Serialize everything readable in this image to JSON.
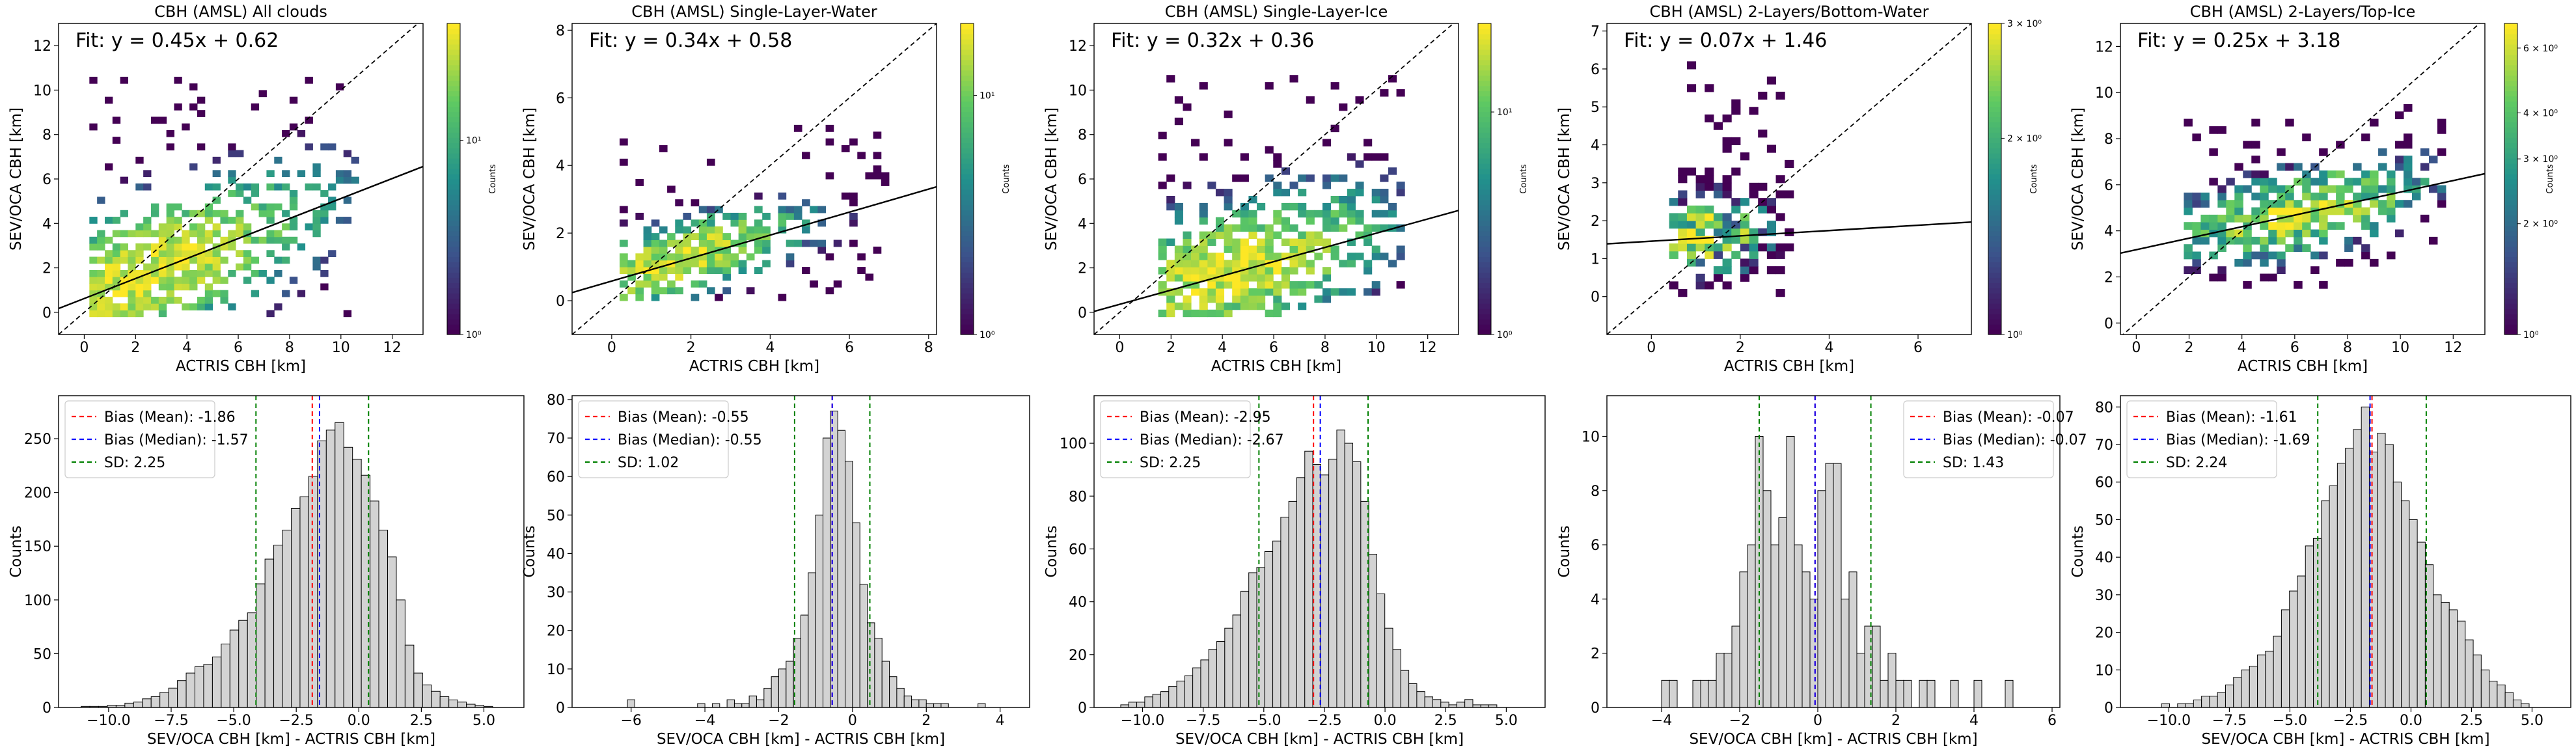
{
  "figure": {
    "colorbar_label": "Counts",
    "xlabel_top": "ACTRIS CBH [km]",
    "ylabel_top": "SEV/OCA CBH [km]",
    "xlabel_bottom": "SEV/OCA CBH [km] - ACTRIS CBH [km]",
    "ylabel_bottom": "Counts",
    "colormap": [
      "#440154",
      "#3b528b",
      "#21918c",
      "#5ec962",
      "#fde725"
    ],
    "fit_line_color": "#000000",
    "identity_line_color": "#000000",
    "hist_bar_fill": "#d3d3d3",
    "hist_bar_edge": "#000000",
    "mean_color": "#ff0000",
    "median_color": "#0000ff",
    "sd_color": "#008000"
  },
  "chart_data": [
    {
      "type": "heatmap",
      "panel": "top-1",
      "title": "CBH (AMSL) All clouds",
      "xlabel": "ACTRIS CBH [km]",
      "ylabel": "SEV/OCA CBH [km]",
      "xlim": [
        -1,
        13.2
      ],
      "ylim": [
        -1,
        13
      ],
      "xticks": [
        0,
        2,
        4,
        6,
        8,
        10,
        12
      ],
      "yticks": [
        0,
        2,
        4,
        6,
        8,
        10,
        12
      ],
      "fit_text": "Fit: y = 0.45x + 0.62",
      "fit": {
        "slope": 0.45,
        "intercept": 0.62
      },
      "colorbar": {
        "label": "Counts",
        "scale": "log",
        "ticks": [
          {
            "value": 1,
            "label": "10⁰"
          },
          {
            "value": 10,
            "label": "10¹"
          }
        ],
        "max": 40
      },
      "density": {
        "x_range": [
          0.2,
          10.8
        ],
        "y_range": [
          -0.2,
          10.8
        ],
        "center": [
          2.2,
          0.8
        ],
        "spread": [
          2.5,
          1.8
        ],
        "bin": 0.3,
        "slope": 0.45,
        "intercept": 0.62
      }
    },
    {
      "type": "heatmap",
      "panel": "top-2",
      "title": "CBH (AMSL) Single-Layer-Water",
      "xlabel": "ACTRIS CBH [km]",
      "ylabel": "SEV/OCA CBH [km]",
      "xlim": [
        -1,
        8.2
      ],
      "ylim": [
        -1,
        8.2
      ],
      "xticks": [
        0,
        2,
        4,
        6,
        8
      ],
      "yticks": [
        0,
        2,
        4,
        6,
        8
      ],
      "fit_text": "Fit: y = 0.34x + 0.58",
      "fit": {
        "slope": 0.34,
        "intercept": 0.58
      },
      "colorbar": {
        "label": "Counts",
        "scale": "log",
        "ticks": [
          {
            "value": 1,
            "label": "10⁰"
          },
          {
            "value": 10,
            "label": "10¹"
          }
        ],
        "max": 20
      },
      "density": {
        "x_range": [
          0.2,
          7.2
        ],
        "y_range": [
          0,
          5.2
        ],
        "center": [
          1.6,
          1.2
        ],
        "spread": [
          1.2,
          0.7
        ],
        "bin": 0.2,
        "slope": 0.34,
        "intercept": 0.58
      }
    },
    {
      "type": "heatmap",
      "panel": "top-3",
      "title": "CBH (AMSL) Single-Layer-Ice",
      "xlabel": "ACTRIS CBH [km]",
      "ylabel": "SEV/OCA CBH [km]",
      "xlim": [
        -1,
        13.2
      ],
      "ylim": [
        -1,
        13
      ],
      "xticks": [
        0,
        2,
        4,
        6,
        8,
        10,
        12
      ],
      "yticks": [
        0,
        2,
        4,
        6,
        8,
        10,
        12
      ],
      "fit_text": "Fit: y = 0.32x + 0.36",
      "fit": {
        "slope": 0.32,
        "intercept": 0.36
      },
      "colorbar": {
        "label": "Counts",
        "scale": "log",
        "ticks": [
          {
            "value": 1,
            "label": "10⁰"
          },
          {
            "value": 10,
            "label": "10¹"
          }
        ],
        "max": 25
      },
      "density": {
        "x_range": [
          1.5,
          11
        ],
        "y_range": [
          -0.2,
          10.5
        ],
        "center": [
          4.2,
          1.5
        ],
        "spread": [
          2.2,
          1.8
        ],
        "bin": 0.32,
        "slope": 0.32,
        "intercept": 0.36
      }
    },
    {
      "type": "heatmap",
      "panel": "top-4",
      "title": "CBH (AMSL) 2-Layers/Bottom-Water",
      "xlabel": "ACTRIS CBH [km]",
      "ylabel": "SEV/OCA CBH [km]",
      "xlim": [
        -1,
        7.2
      ],
      "ylim": [
        -1,
        7.2
      ],
      "xticks": [
        0,
        2,
        4,
        6
      ],
      "yticks": [
        0,
        1,
        2,
        3,
        4,
        5,
        6,
        7
      ],
      "fit_text": "Fit: y = 0.07x + 1.46",
      "fit": {
        "slope": 0.07,
        "intercept": 1.46
      },
      "colorbar": {
        "label": "Counts",
        "scale": "log",
        "ticks": [
          {
            "value": 1,
            "label": "10⁰"
          },
          {
            "value": 2,
            "label": "2 × 10⁰"
          },
          {
            "value": 3,
            "label": "3 × 10⁰"
          }
        ],
        "max": 3
      },
      "density": {
        "x_range": [
          0.4,
          3.2
        ],
        "y_range": [
          0,
          6.2
        ],
        "center": [
          1.2,
          1.4
        ],
        "spread": [
          0.7,
          0.9
        ],
        "bin": 0.2,
        "slope": 0.07,
        "intercept": 1.46
      }
    },
    {
      "type": "heatmap",
      "panel": "top-5",
      "title": "CBH (AMSL) 2-Layers/Top-Ice",
      "xlabel": "ACTRIS CBH [km]",
      "ylabel": "SEV/OCA CBH [km]",
      "xlim": [
        -0.6,
        13.2
      ],
      "ylim": [
        -0.5,
        13
      ],
      "xticks": [
        0,
        2,
        4,
        6,
        8,
        10,
        12
      ],
      "yticks": [
        0,
        2,
        4,
        6,
        8,
        10,
        12
      ],
      "fit_text": "Fit: y = 0.25x + 3.18",
      "fit": {
        "slope": 0.25,
        "intercept": 3.18
      },
      "colorbar": {
        "label": "Counts",
        "scale": "log",
        "ticks": [
          {
            "value": 1,
            "label": "10⁰"
          },
          {
            "value": 2,
            "label": "2 × 10⁰"
          },
          {
            "value": 3,
            "label": "3 × 10⁰"
          },
          {
            "value": 4,
            "label": "4 × 10⁰"
          },
          {
            "value": 6,
            "label": "6 × 10⁰"
          }
        ],
        "max": 7
      },
      "density": {
        "x_range": [
          1.8,
          11.5
        ],
        "y_range": [
          1.5,
          9.5
        ],
        "center": [
          6.0,
          4.5
        ],
        "spread": [
          2.2,
          1.3
        ],
        "bin": 0.32,
        "slope": 0.25,
        "intercept": 3.18
      }
    },
    {
      "type": "bar",
      "panel": "bottom-1",
      "title": "",
      "xlabel": "SEV/OCA CBH [km] - ACTRIS CBH [km]",
      "ylabel": "Counts",
      "xlim": [
        -12,
        6.6
      ],
      "ylim": [
        0,
        290
      ],
      "xticks": [
        {
          "value": -10,
          "label": "−10.0"
        },
        {
          "value": -7.5,
          "label": "−7.5"
        },
        {
          "value": -5,
          "label": "−5.0"
        },
        {
          "value": -2.5,
          "label": "−2.5"
        },
        {
          "value": 0,
          "label": "0.0"
        },
        {
          "value": 2.5,
          "label": "2.5"
        },
        {
          "value": 5,
          "label": "5.0"
        }
      ],
      "yticks": [
        0,
        50,
        100,
        150,
        200,
        250
      ],
      "bin_start": -11.1,
      "bin_width": 0.35,
      "values": [
        1,
        1,
        1,
        2,
        2,
        4,
        5,
        8,
        10,
        14,
        18,
        25,
        32,
        38,
        40,
        47,
        59,
        72,
        81,
        88,
        115,
        138,
        151,
        165,
        185,
        196,
        215,
        248,
        258,
        265,
        242,
        231,
        216,
        192,
        165,
        140,
        100,
        58,
        32,
        21,
        15,
        10,
        7,
        5,
        3,
        2,
        1
      ],
      "bias_mean": -1.86,
      "bias_median": -1.57,
      "sd": 2.25,
      "sd_lines": [
        -4.11,
        0.39
      ],
      "legend": [
        "Bias (Mean): -1.86",
        "Bias (Median): -1.57",
        "SD: 2.25"
      ],
      "legend_position": "top-left"
    },
    {
      "type": "bar",
      "panel": "bottom-2",
      "title": "",
      "xlabel": "SEV/OCA CBH [km] - ACTRIS CBH [km]",
      "ylabel": "Counts",
      "xlim": [
        -7.6,
        4.8
      ],
      "ylim": [
        0,
        81
      ],
      "xticks": [
        {
          "value": -6,
          "label": "−6"
        },
        {
          "value": -4,
          "label": "−4"
        },
        {
          "value": -2,
          "label": "−2"
        },
        {
          "value": 0,
          "label": "0"
        },
        {
          "value": 2,
          "label": "2"
        },
        {
          "value": 4,
          "label": "4"
        }
      ],
      "yticks": [
        0,
        10,
        20,
        30,
        40,
        50,
        60,
        70,
        80
      ],
      "bin_start": -4.2,
      "bin_width": 0.2,
      "values": [
        1,
        0,
        1,
        0,
        2,
        1,
        1,
        3,
        2,
        5,
        8,
        10,
        12,
        18,
        24,
        35,
        50,
        70,
        77,
        72,
        64,
        48,
        32,
        22,
        18,
        12,
        8,
        5,
        3,
        2,
        2,
        1,
        1,
        1
      ],
      "extra_bars": [
        {
          "x": -6.1,
          "value": 2
        },
        {
          "x": 3.4,
          "value": 1
        }
      ],
      "bias_mean": -0.55,
      "bias_median": -0.55,
      "sd": 1.02,
      "sd_lines": [
        -1.57,
        0.47
      ],
      "legend": [
        "Bias (Mean): -0.55",
        "Bias (Median): -0.55",
        "SD: 1.02"
      ],
      "legend_position": "top-left"
    },
    {
      "type": "bar",
      "panel": "bottom-3",
      "title": "",
      "xlabel": "SEV/OCA CBH [km] - ACTRIS CBH [km]",
      "ylabel": "Counts",
      "xlim": [
        -12,
        6.6
      ],
      "ylim": [
        0,
        118
      ],
      "xticks": [
        {
          "value": -10,
          "label": "−10.0"
        },
        {
          "value": -7.5,
          "label": "−7.5"
        },
        {
          "value": -5,
          "label": "−5.0"
        },
        {
          "value": -2.5,
          "label": "−2.5"
        },
        {
          "value": 0,
          "label": "0.0"
        },
        {
          "value": 2.5,
          "label": "2.5"
        },
        {
          "value": 5,
          "label": "5.0"
        }
      ],
      "yticks": [
        0,
        20,
        40,
        60,
        80,
        100
      ],
      "bin_start": -10.9,
      "bin_width": 0.33,
      "values": [
        1,
        2,
        2,
        4,
        5,
        6,
        8,
        10,
        12,
        15,
        18,
        22,
        25,
        30,
        35,
        44,
        51,
        53,
        59,
        63,
        72,
        78,
        87,
        97,
        92,
        88,
        94,
        105,
        100,
        93,
        78,
        58,
        43,
        30,
        22,
        14,
        9,
        6,
        4,
        3,
        2,
        1,
        2,
        3,
        1,
        1,
        1
      ],
      "bias_mean": -2.95,
      "bias_median": -2.67,
      "sd": 2.25,
      "sd_lines": [
        -5.2,
        -0.7
      ],
      "legend": [
        "Bias (Mean): -2.95",
        "Bias (Median): -2.67",
        "SD: 2.25"
      ],
      "legend_position": "top-left"
    },
    {
      "type": "bar",
      "panel": "bottom-4",
      "title": "",
      "xlabel": "SEV/OCA CBH [km] - ACTRIS CBH [km]",
      "ylabel": "Counts",
      "xlim": [
        -5.4,
        6.2
      ],
      "ylim": [
        0,
        11.5
      ],
      "xticks": [
        {
          "value": -4,
          "label": "−4"
        },
        {
          "value": -2,
          "label": "−2"
        },
        {
          "value": 0,
          "label": "0"
        },
        {
          "value": 2,
          "label": "2"
        },
        {
          "value": 4,
          "label": "4"
        },
        {
          "value": 6,
          "label": "6"
        }
      ],
      "yticks": [
        0,
        2,
        4,
        6,
        8,
        10
      ],
      "bin_start": -4.0,
      "bin_width": 0.2,
      "values": [
        1,
        1,
        0,
        0,
        1,
        1,
        1,
        2,
        2,
        3,
        5,
        6,
        10,
        8,
        6,
        7,
        10,
        6,
        5,
        4,
        8,
        9,
        9,
        4,
        5,
        2,
        3,
        3,
        1,
        2,
        1,
        1,
        0,
        1,
        1,
        0,
        0,
        1,
        0,
        0,
        1,
        0,
        0,
        0,
        1
      ],
      "bias_mean": -0.07,
      "bias_median": -0.07,
      "sd": 1.43,
      "sd_lines": [
        -1.5,
        1.36
      ],
      "legend": [
        "Bias (Mean): -0.07",
        "Bias (Median): -0.07",
        "SD: 1.43"
      ],
      "legend_position": "top-right"
    },
    {
      "type": "bar",
      "panel": "bottom-5",
      "title": "",
      "xlabel": "SEV/OCA CBH [km] - ACTRIS CBH [km]",
      "ylabel": "Counts",
      "xlim": [
        -12,
        6.6
      ],
      "ylim": [
        0,
        83
      ],
      "xticks": [
        {
          "value": -10,
          "label": "−10.0"
        },
        {
          "value": -7.5,
          "label": "−7.5"
        },
        {
          "value": -5,
          "label": "−5.0"
        },
        {
          "value": -2.5,
          "label": "−2.5"
        },
        {
          "value": 0,
          "label": "0.0"
        },
        {
          "value": 2.5,
          "label": "2.5"
        },
        {
          "value": 5,
          "label": "5.0"
        }
      ],
      "yticks": [
        0,
        10,
        20,
        30,
        40,
        50,
        60,
        70,
        80
      ],
      "bin_start": -10.3,
      "bin_width": 0.33,
      "values": [
        1,
        0,
        1,
        1,
        2,
        3,
        3,
        4,
        6,
        8,
        10,
        11,
        14,
        15,
        19,
        26,
        31,
        35,
        43,
        45,
        55,
        59,
        65,
        69,
        74,
        80,
        68,
        73,
        70,
        60,
        55,
        50,
        44,
        38,
        30,
        28,
        26,
        23,
        18,
        14,
        10,
        7,
        6,
        4,
        2,
        1
      ],
      "bias_mean": -1.61,
      "bias_median": -1.69,
      "sd": 2.24,
      "sd_lines": [
        -3.85,
        0.63
      ],
      "legend": [
        "Bias (Mean): -1.61",
        "Bias (Median): -1.69",
        "SD: 2.24"
      ],
      "legend_position": "top-left"
    }
  ]
}
